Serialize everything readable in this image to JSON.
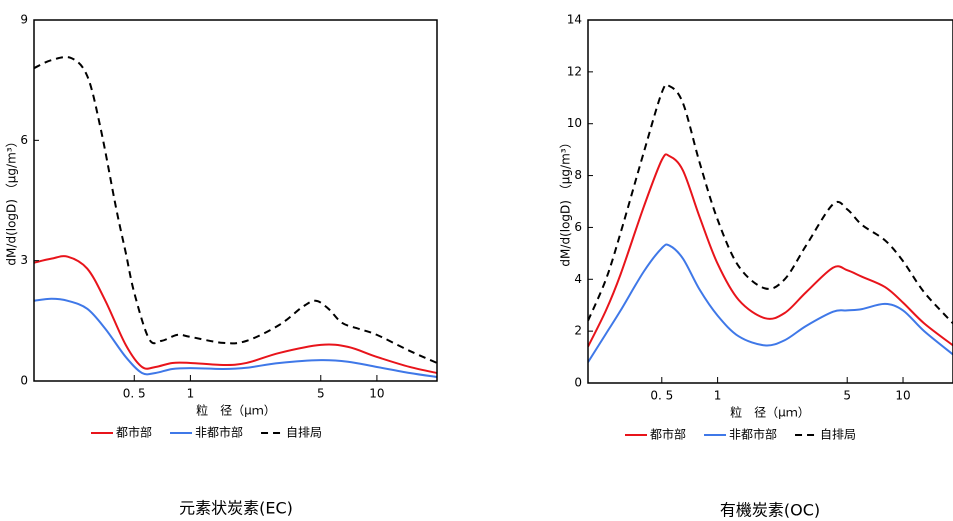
{
  "chart_data": [
    {
      "type": "line",
      "title": "元素状炭素(EC)",
      "x_label": "粒　径（μｍ）",
      "y_label": "dM/d(logD) （μg/m³）",
      "log_x": true,
      "xlim": [
        0.145,
        21
      ],
      "ylim": [
        0,
        9
      ],
      "yticks": [
        0,
        3,
        6,
        9
      ],
      "xticks": [
        {
          "value": 0.5,
          "label": "0. 5"
        },
        1,
        5,
        10
      ],
      "series": [
        {
          "name": "都市部",
          "color": "#e8141b",
          "linestyle": "solid",
          "x": [
            0.145,
            0.18,
            0.22,
            0.28,
            0.35,
            0.45,
            0.55,
            0.65,
            0.8,
            1,
            1.5,
            2,
            3,
            5,
            7,
            10,
            15,
            21
          ],
          "values": [
            2.95,
            3.05,
            3.1,
            2.8,
            2.0,
            0.9,
            0.35,
            0.35,
            0.45,
            0.45,
            0.4,
            0.45,
            0.7,
            0.9,
            0.85,
            0.6,
            0.35,
            0.2
          ]
        },
        {
          "name": "非都市部",
          "color": "#3f78e8",
          "linestyle": "solid",
          "x": [
            0.145,
            0.18,
            0.22,
            0.28,
            0.35,
            0.45,
            0.55,
            0.65,
            0.8,
            1,
            1.5,
            2,
            3,
            5,
            7,
            10,
            15,
            21
          ],
          "values": [
            2.0,
            2.05,
            2.0,
            1.8,
            1.3,
            0.6,
            0.2,
            0.2,
            0.3,
            0.32,
            0.3,
            0.33,
            0.45,
            0.52,
            0.48,
            0.35,
            0.2,
            0.1
          ]
        },
        {
          "name": "自排局",
          "color": "#000000",
          "linestyle": "dashed",
          "x": [
            0.145,
            0.18,
            0.23,
            0.28,
            0.33,
            0.4,
            0.45,
            0.5,
            0.6,
            0.7,
            0.85,
            1,
            1.5,
            2,
            3,
            4,
            4.7,
            5.5,
            6.5,
            8,
            10,
            15,
            21
          ],
          "values": [
            7.8,
            8.0,
            8.05,
            7.6,
            6.3,
            4.3,
            3.2,
            2.2,
            1.05,
            1.0,
            1.15,
            1.1,
            0.95,
            1.0,
            1.4,
            1.85,
            2.0,
            1.8,
            1.45,
            1.3,
            1.15,
            0.75,
            0.45
          ]
        }
      ]
    },
    {
      "type": "line",
      "title": "有機炭素(OC)",
      "x_label": "粒　径（μｍ）",
      "y_label": "dM/d(logD) （μg/m³）",
      "log_x": true,
      "xlim": [
        0.2,
        18.6
      ],
      "ylim": [
        0,
        14
      ],
      "yticks": [
        0,
        2,
        4,
        6,
        8,
        10,
        12,
        14
      ],
      "xticks": [
        {
          "value": 0.5,
          "label": "0. 5"
        },
        1,
        5,
        10
      ],
      "series": [
        {
          "name": "都市部",
          "color": "#e8141b",
          "linestyle": "solid",
          "x": [
            0.2,
            0.25,
            0.3,
            0.4,
            0.5,
            0.55,
            0.65,
            0.8,
            1,
            1.3,
            1.8,
            2.3,
            3,
            4.2,
            5,
            6,
            8,
            10,
            13,
            18.6
          ],
          "values": [
            1.4,
            2.8,
            4.2,
            6.8,
            8.6,
            8.75,
            8.2,
            6.4,
            4.6,
            3.2,
            2.5,
            2.7,
            3.5,
            4.45,
            4.35,
            4.1,
            3.7,
            3.1,
            2.3,
            1.45
          ]
        },
        {
          "name": "非都市部",
          "color": "#3f78e8",
          "linestyle": "solid",
          "x": [
            0.2,
            0.25,
            0.3,
            0.4,
            0.5,
            0.55,
            0.65,
            0.8,
            1,
            1.3,
            1.8,
            2.3,
            3,
            4.2,
            5,
            6,
            8,
            10,
            13,
            18.6
          ],
          "values": [
            0.8,
            1.9,
            2.8,
            4.3,
            5.2,
            5.3,
            4.8,
            3.6,
            2.6,
            1.8,
            1.45,
            1.65,
            2.2,
            2.75,
            2.8,
            2.85,
            3.05,
            2.8,
            2.0,
            1.1
          ]
        },
        {
          "name": "自排局",
          "color": "#000000",
          "linestyle": "dashed",
          "x": [
            0.2,
            0.25,
            0.3,
            0.4,
            0.5,
            0.55,
            0.65,
            0.8,
            1,
            1.3,
            1.8,
            2.3,
            3,
            4.2,
            5,
            6,
            8,
            10,
            13,
            18.6
          ],
          "values": [
            2.4,
            4.0,
            5.8,
            8.9,
            11.2,
            11.45,
            10.8,
            8.5,
            6.3,
            4.5,
            3.65,
            4.0,
            5.3,
            6.9,
            6.7,
            6.1,
            5.5,
            4.7,
            3.5,
            2.3
          ]
        }
      ]
    }
  ]
}
